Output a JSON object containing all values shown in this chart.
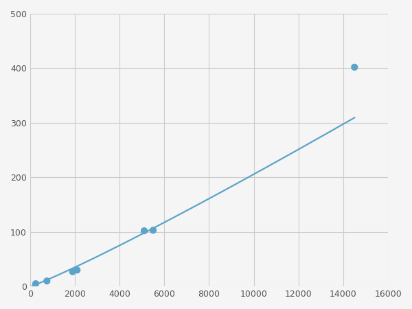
{
  "x": [
    250,
    750,
    1900,
    2100,
    5100,
    5500,
    14500
  ],
  "y": [
    5,
    10,
    27,
    30,
    102,
    103,
    402
  ],
  "line_color": "#5ba3c9",
  "marker_color": "#5ba3c9",
  "marker_size": 6,
  "linewidth": 1.6,
  "xlim": [
    0,
    16000
  ],
  "ylim": [
    0,
    500
  ],
  "xticks": [
    0,
    2000,
    4000,
    6000,
    8000,
    10000,
    12000,
    14000,
    16000
  ],
  "yticks": [
    0,
    100,
    200,
    300,
    400,
    500
  ],
  "grid_color": "#cccccc",
  "background_color": "#f5f5f5"
}
